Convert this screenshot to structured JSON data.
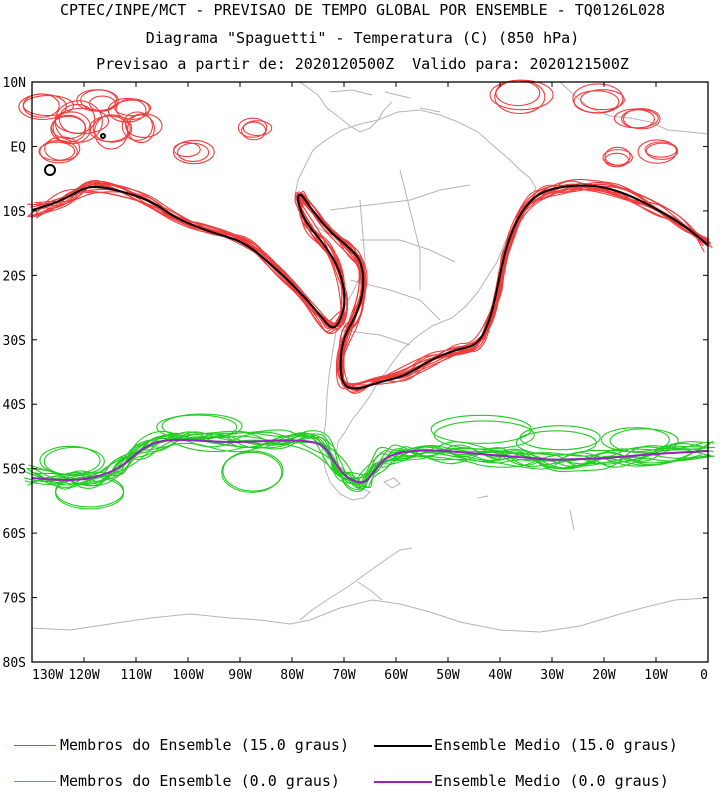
{
  "header": {
    "line1": "CPTEC/INPE/MCT - PREVISAO DE TEMPO GLOBAL POR ENSEMBLE - TQ0126L028",
    "line2": "Diagrama \"Spaguetti\" - Temperatura (C) (850 hPa)",
    "line3": "Previsao a partir de: 2020120500Z  Valido para: 2020121500Z"
  },
  "map": {
    "lat_labels": [
      "10N",
      "EQ",
      "10S",
      "20S",
      "30S",
      "40S",
      "50S",
      "60S",
      "70S",
      "80S"
    ],
    "lon_labels": [
      "130W",
      "120W",
      "110W",
      "100W",
      "90W",
      "80W",
      "70W",
      "60W",
      "50W",
      "40W",
      "30W",
      "20W",
      "10W",
      "0"
    ],
    "lat_range": [
      10,
      -80
    ],
    "lon_range": [
      -130,
      0
    ]
  },
  "legend": {
    "members_15": "Membros do Ensemble (15.0 graus)",
    "mean_15": "Ensemble Medio (15.0 graus)",
    "members_0": "Membros do Ensemble (0.0 graus)",
    "mean_0": "Ensemble Medio (0.0 graus)"
  },
  "colors": {
    "member15": "#f03c3c",
    "mean15": "#000000",
    "member0": "#22cc22",
    "mean0": "#9a1fc0",
    "coast": "#b4b4b4",
    "frame": "#000000"
  }
}
